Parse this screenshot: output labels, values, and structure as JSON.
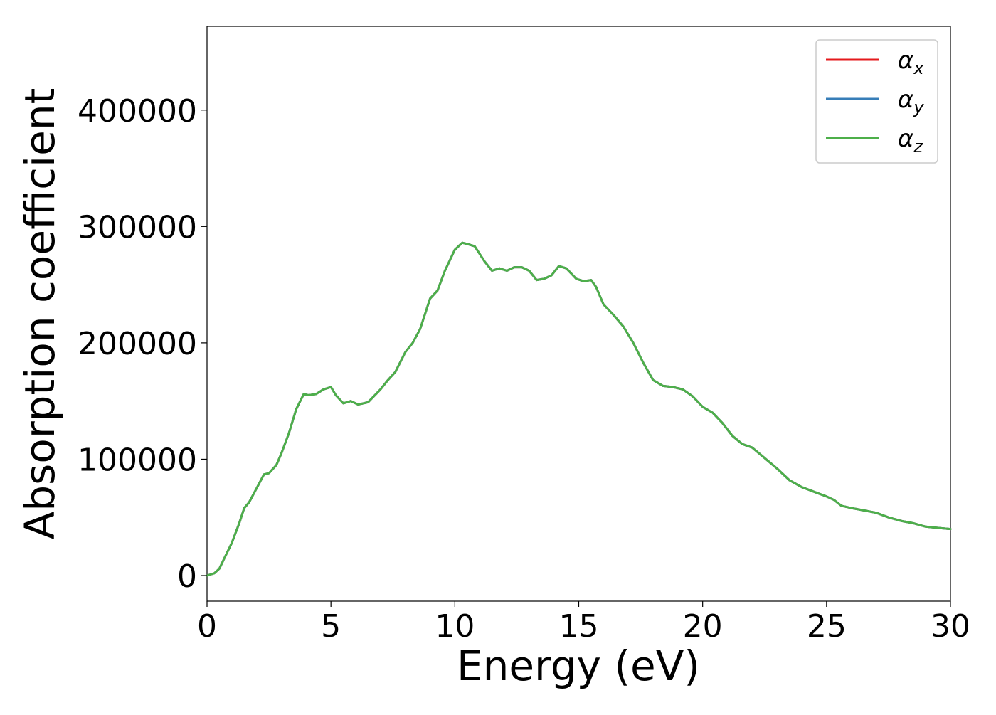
{
  "chart_data": {
    "type": "line",
    "title": "",
    "xlabel": "Energy (eV)",
    "ylabel": "Absorption coefficient",
    "xlim": [
      0,
      30
    ],
    "ylim": [
      -22000,
      472000
    ],
    "xticks": [
      0,
      5,
      10,
      15,
      20,
      25,
      30
    ],
    "xtick_labels": [
      "0",
      "5",
      "10",
      "15",
      "20",
      "25",
      "30"
    ],
    "yticks": [
      0,
      100000,
      200000,
      300000,
      400000
    ],
    "ytick_labels": [
      "0",
      "100000",
      "200000",
      "300000",
      "400000"
    ],
    "grid": false,
    "legend_position": "top-right",
    "legend": [
      {
        "base": "α",
        "sub": "x",
        "color": "#e41a1c"
      },
      {
        "base": "α",
        "sub": "y",
        "color": "#377eb8"
      },
      {
        "base": "α",
        "sub": "z",
        "color": "#4daf4a"
      }
    ],
    "x": [
      0,
      0.3,
      0.5,
      0.7,
      1.0,
      1.3,
      1.5,
      1.7,
      2.0,
      2.3,
      2.5,
      2.8,
      3.0,
      3.3,
      3.6,
      3.9,
      4.1,
      4.4,
      4.7,
      5.0,
      5.2,
      5.5,
      5.8,
      6.1,
      6.5,
      7.0,
      7.3,
      7.6,
      8.0,
      8.3,
      8.6,
      9.0,
      9.3,
      9.6,
      10.0,
      10.3,
      10.5,
      10.8,
      11.2,
      11.5,
      11.8,
      12.1,
      12.4,
      12.7,
      13.0,
      13.3,
      13.6,
      13.9,
      14.2,
      14.5,
      14.9,
      15.2,
      15.5,
      15.7,
      16.0,
      16.4,
      16.8,
      17.2,
      17.6,
      18.0,
      18.4,
      18.8,
      19.2,
      19.6,
      20.0,
      20.4,
      20.8,
      21.2,
      21.6,
      22.0,
      22.5,
      23.0,
      23.5,
      24.0,
      24.5,
      25.0,
      25.3,
      25.6,
      26.0,
      26.5,
      27.0,
      27.5,
      28.0,
      28.5,
      29.0,
      29.5,
      30.0
    ],
    "series": [
      {
        "name": "α_x",
        "color": "#e41a1c",
        "values": [
          0,
          2000,
          6000,
          15000,
          28000,
          45000,
          58000,
          63000,
          75000,
          87000,
          88000,
          95000,
          105000,
          122000,
          143000,
          156000,
          155000,
          156000,
          160000,
          162000,
          155000,
          148000,
          150000,
          147000,
          149000,
          160000,
          168000,
          175000,
          192000,
          200000,
          212000,
          238000,
          245000,
          262000,
          280000,
          286000,
          285000,
          283000,
          270000,
          262000,
          264000,
          262000,
          265000,
          265000,
          262000,
          254000,
          255000,
          258000,
          266000,
          264000,
          255000,
          253000,
          254000,
          248000,
          233000,
          224000,
          214000,
          200000,
          183000,
          168000,
          163000,
          162000,
          160000,
          154000,
          145000,
          140000,
          131000,
          120000,
          113000,
          110000,
          101000,
          92000,
          82000,
          76000,
          72000,
          68000,
          65000,
          60000,
          58000,
          56000,
          54000,
          50000,
          47000,
          45000,
          42000,
          41000,
          40000
        ]
      },
      {
        "name": "α_y",
        "color": "#377eb8",
        "values": [
          0,
          2000,
          6000,
          15000,
          28000,
          45000,
          58000,
          63000,
          75000,
          87000,
          88000,
          95000,
          105000,
          122000,
          143000,
          156000,
          155000,
          156000,
          160000,
          162000,
          155000,
          148000,
          150000,
          147000,
          149000,
          160000,
          168000,
          175000,
          192000,
          200000,
          212000,
          238000,
          245000,
          262000,
          280000,
          286000,
          285000,
          283000,
          270000,
          262000,
          264000,
          262000,
          265000,
          265000,
          262000,
          254000,
          255000,
          258000,
          266000,
          264000,
          255000,
          253000,
          254000,
          248000,
          233000,
          224000,
          214000,
          200000,
          183000,
          168000,
          163000,
          162000,
          160000,
          154000,
          145000,
          140000,
          131000,
          120000,
          113000,
          110000,
          101000,
          92000,
          82000,
          76000,
          72000,
          68000,
          65000,
          60000,
          58000,
          56000,
          54000,
          50000,
          47000,
          45000,
          42000,
          41000,
          40000
        ]
      },
      {
        "name": "α_z",
        "color": "#4daf4a",
        "values": [
          0,
          2000,
          6000,
          15000,
          28000,
          45000,
          58000,
          63000,
          75000,
          87000,
          88000,
          95000,
          105000,
          122000,
          143000,
          156000,
          155000,
          156000,
          160000,
          162000,
          155000,
          148000,
          150000,
          147000,
          149000,
          160000,
          168000,
          175000,
          192000,
          200000,
          212000,
          238000,
          245000,
          262000,
          280000,
          286000,
          285000,
          283000,
          270000,
          262000,
          264000,
          262000,
          265000,
          265000,
          262000,
          254000,
          255000,
          258000,
          266000,
          264000,
          255000,
          253000,
          254000,
          248000,
          233000,
          224000,
          214000,
          200000,
          183000,
          168000,
          163000,
          162000,
          160000,
          154000,
          145000,
          140000,
          131000,
          120000,
          113000,
          110000,
          101000,
          92000,
          82000,
          76000,
          72000,
          68000,
          65000,
          60000,
          58000,
          56000,
          54000,
          50000,
          47000,
          45000,
          42000,
          41000,
          40000
        ]
      }
    ]
  }
}
